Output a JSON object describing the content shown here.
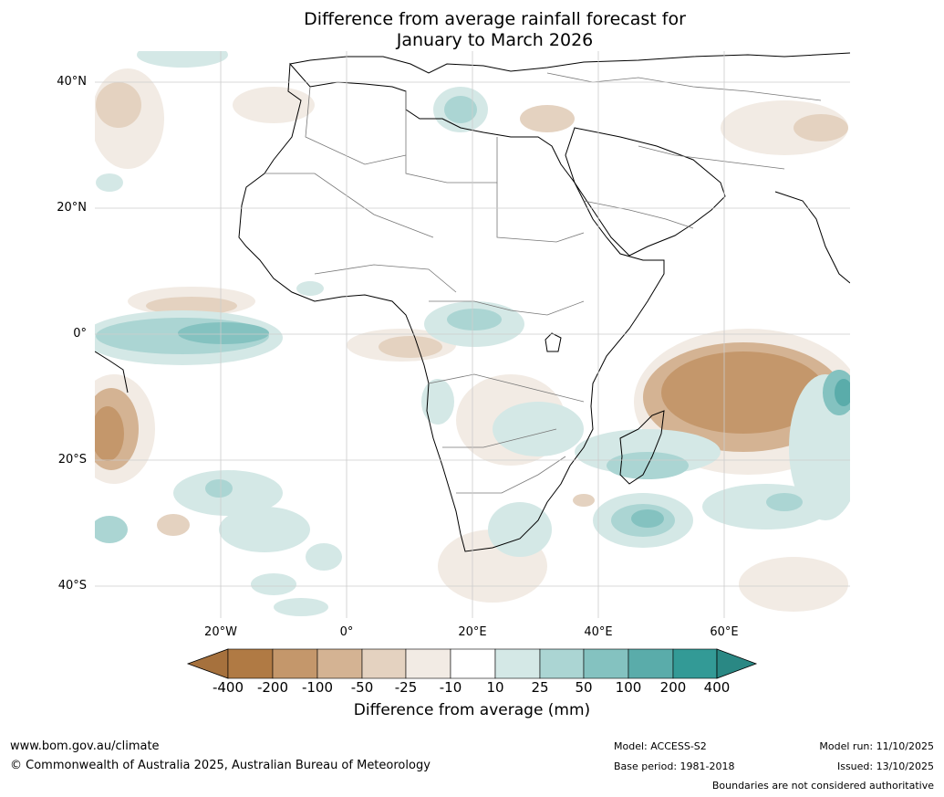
{
  "title_line1": "Difference from average rainfall forecast for",
  "title_line2": "January to March 2026",
  "lat_ticks": [
    "40°N",
    "20°N",
    "0°",
    "20°S",
    "40°S"
  ],
  "lon_ticks": [
    "20°W",
    "0°",
    "20°E",
    "40°E",
    "60°E"
  ],
  "colorbar": {
    "title": "Difference from average (mm)",
    "ticks": [
      "-400",
      "-200",
      "-100",
      "-50",
      "-25",
      "-10",
      "10",
      "25",
      "50",
      "100",
      "200",
      "400"
    ],
    "colors": [
      "#a6713d",
      "#b07a44",
      "#c4976b",
      "#d4b393",
      "#e4d2c0",
      "#f2ebe4",
      "#ffffff",
      "#d4e8e6",
      "#abd5d3",
      "#84c2c0",
      "#5aacaa",
      "#339a96",
      "#2a8884"
    ]
  },
  "footer": {
    "website": "www.bom.gov.au/climate",
    "copyright": "© Commonwealth of Australia 2025, Australian Bureau of Meteorology",
    "model": "Model: ACCESS-S2",
    "base_period": "Base period: 1981-2018",
    "model_run": "Model run: 11/10/2025",
    "issued": "Issued: 13/10/2025",
    "disclaimer": "Boundaries are not considered authoritative"
  }
}
